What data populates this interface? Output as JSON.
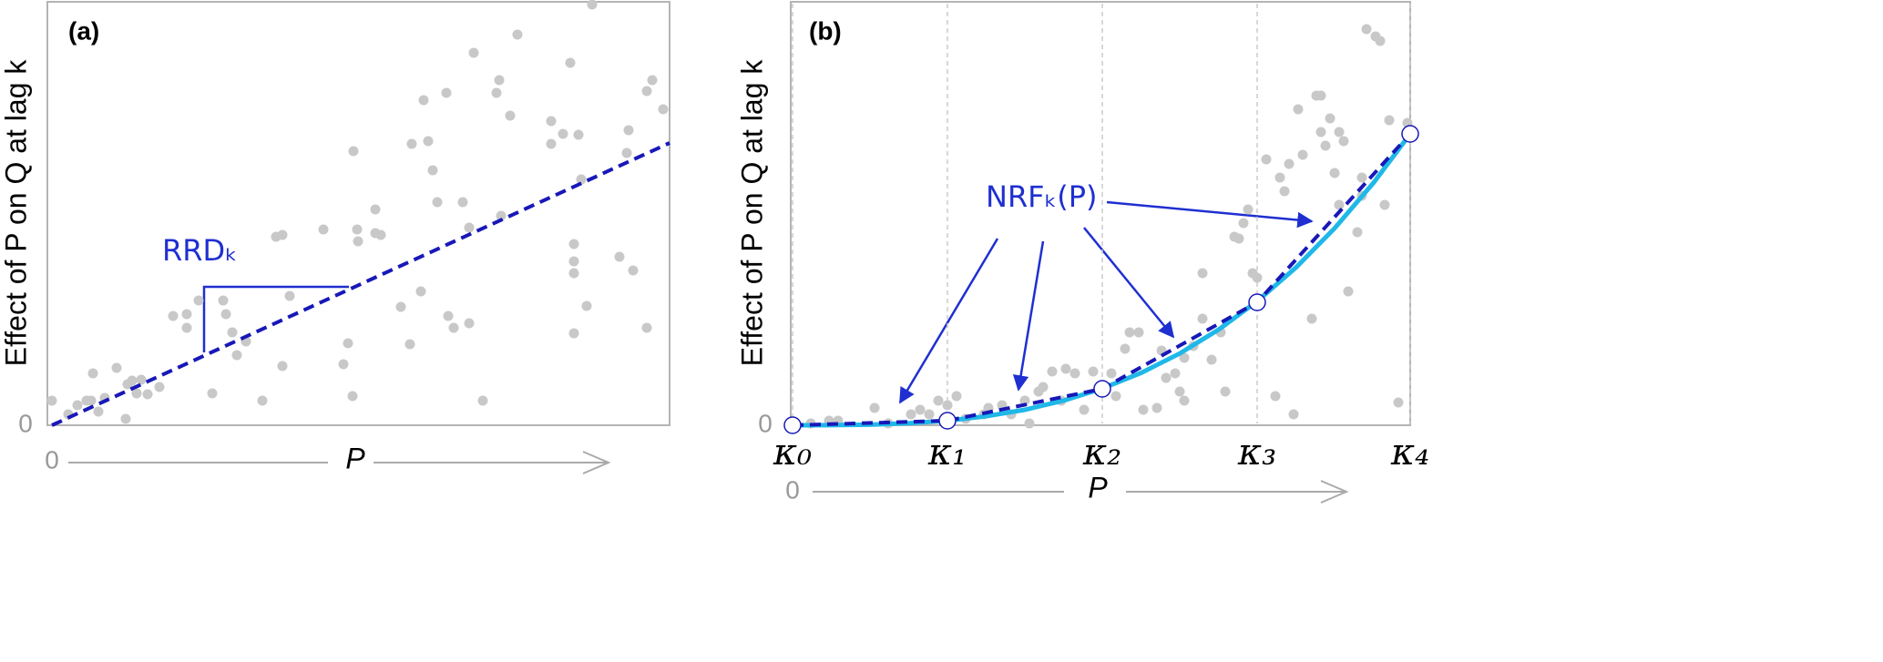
{
  "chart_data": [
    {
      "type": "scatter",
      "title": "(a)",
      "y_label": "Effect of P on Q at lag k",
      "x_label": "P",
      "annotation": "RRDₖ",
      "xlim": [
        0,
        678
      ],
      "ylim": [
        0,
        467
      ],
      "xticks": [
        0
      ],
      "yticks": [
        0
      ],
      "annotation_color": "#1f2fd0",
      "series": [
        {
          "kind": "points",
          "color": "#c8c8c8",
          "x": [
            0,
            18,
            28,
            38,
            43,
            45,
            51,
            58,
            71,
            81,
            83,
            88,
            93,
            98,
            105,
            118,
            133,
            148,
            148,
            161,
            176,
            188,
            191,
            198,
            203,
            213,
            231,
            246,
            253,
            253,
            261,
            298,
            320,
            325,
            330,
            331,
            335,
            336,
            355,
            361,
            355,
            383,
            393,
            395,
            405,
            408,
            413,
            418,
            423,
            433,
            435,
            441,
            451,
            458,
            458,
            463,
            473,
            488,
            491,
            493,
            503,
            511,
            548,
            548,
            561,
            569,
            573,
            573,
            573,
            573,
            578,
            581,
            587,
            593,
            623,
            631,
            633,
            638,
            653,
            653,
            659,
            671
          ],
          "values": [
            27,
            12,
            22,
            27,
            27,
            57,
            15,
            30,
            63,
            7,
            45,
            49,
            35,
            50,
            34,
            42,
            120,
            122,
            107,
            137,
            35,
            137,
            122,
            102,
            77,
            92,
            27,
            207,
            209,
            65,
            142,
            215,
            67,
            90,
            32,
            301,
            215,
            202,
            211,
            209,
            237,
            130,
            89,
            309,
            147,
            357,
            312,
            280,
            245,
            365,
            120,
            107,
            245,
            217,
            112,
            409,
            27,
            365,
            379,
            230,
            340,
            429,
            334,
            309,
            320,
            398,
            199,
            180,
            167,
            101,
            319,
            270,
            131,
            462,
            185,
            299,
            324,
            170,
            107,
            367,
            379,
            347
          ]
        },
        {
          "kind": "dashed",
          "color": "#1818b8",
          "x": [
            0,
            678
          ],
          "values": [
            0,
            310
          ]
        }
      ]
    },
    {
      "type": "scatter",
      "title": "(b)",
      "y_label": "Effect of P on Q at lag k",
      "x_label": "P",
      "annotation": "NRFₖ(P)",
      "x_origin": 0,
      "xlim": [
        0,
        678
      ],
      "ylim": [
        0,
        467
      ],
      "yticks": [
        0
      ],
      "annotation_color": "#1f2fd0",
      "xticks": [
        {
          "value": 0,
          "label": "κ₀"
        },
        {
          "value": 170,
          "label": "κ₁"
        },
        {
          "value": 340,
          "label": "κ₂"
        },
        {
          "value": 510,
          "label": "κ₃"
        },
        {
          "value": 678,
          "label": "κ₄"
        }
      ],
      "grid": true,
      "series": [
        {
          "kind": "points",
          "color": "#c8c8c8",
          "x": [
            20,
            40,
            50,
            90,
            105,
            130,
            140,
            150,
            160,
            170,
            180,
            190,
            210,
            215,
            230,
            240,
            255,
            260,
            270,
            275,
            285,
            295,
            300,
            310,
            320,
            330,
            350,
            355,
            365,
            370,
            380,
            385,
            400,
            405,
            410,
            420,
            425,
            430,
            430,
            440,
            450,
            450,
            460,
            470,
            475,
            485,
            490,
            495,
            500,
            505,
            510,
            520,
            530,
            535,
            540,
            545,
            550,
            555,
            560,
            570,
            575,
            580,
            580,
            585,
            590,
            595,
            600,
            600,
            605,
            610,
            620,
            625,
            630,
            625,
            640,
            645,
            650,
            665,
            675,
            655
          ],
          "values": [
            2,
            5,
            5,
            19,
            2,
            12,
            17,
            12,
            27,
            22,
            32,
            7,
            12,
            19,
            22,
            12,
            27,
            2,
            37,
            42,
            59,
            27,
            62,
            57,
            17,
            59,
            57,
            32,
            84,
            102,
            102,
            17,
            19,
            82,
            52,
            57,
            37,
            27,
            74,
            87,
            117,
            167,
            72,
            102,
            37,
            207,
            205,
            222,
            237,
            167,
            162,
            292,
            32,
            272,
            257,
            287,
            12,
            347,
            297,
            117,
            362,
            362,
            322,
            307,
            337,
            277,
            242,
            322,
            312,
            147,
            212,
            252,
            435,
            272,
            427,
            422,
            242,
            25,
            332,
            335
          ]
        },
        {
          "kind": "solid",
          "color": "#1fb8e8",
          "x": [
            0,
            42,
            85,
            128,
            170,
            212,
            255,
            298,
            340,
            383,
            425,
            468,
            510,
            553,
            595,
            638,
            678
          ],
          "values": [
            0,
            0.08,
            0.6,
            2.2,
            5,
            9.8,
            17,
            27.2,
            40.3,
            57.7,
            78.8,
            105.2,
            136.2,
            173.6,
            216.3,
            266.6,
            320
          ]
        },
        {
          "kind": "dashed",
          "color": "#1818b8",
          "x": [
            0,
            170,
            340,
            510,
            678
          ],
          "values": [
            0,
            5,
            40,
            135,
            320
          ]
        },
        {
          "kind": "knots",
          "color": "#1818b8",
          "x": [
            0,
            170,
            340,
            510,
            678
          ],
          "values": [
            0,
            5,
            40,
            135,
            320
          ]
        }
      ]
    }
  ]
}
